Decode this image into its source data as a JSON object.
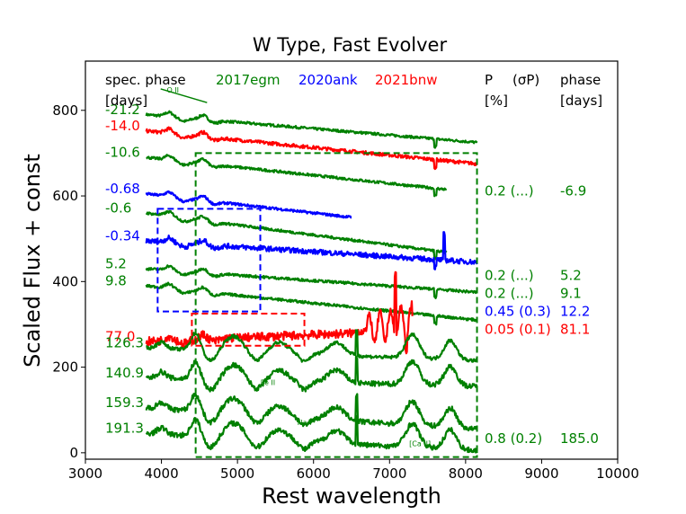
{
  "chart_data": {
    "type": "line",
    "title": "W Type, Fast Evolver",
    "xlabel": "Rest wavelength",
    "ylabel": "Scaled Flux + const",
    "xlim": [
      3000,
      10000
    ],
    "ylim": [
      -15,
      915
    ],
    "xticks": [
      3000,
      4000,
      5000,
      6000,
      7000,
      8000,
      9000,
      10000
    ],
    "yticks": [
      0,
      200,
      400,
      600,
      800
    ],
    "colors": {
      "2017egm": "#008000",
      "2020ank": "#0000ff",
      "2021bnw": "#ff0000"
    },
    "header": {
      "spec_phase": "spec. phase",
      "days_left": "[days]",
      "legend": [
        {
          "name": "2017egm",
          "color": "#008000"
        },
        {
          "name": "2020ank",
          "color": "#0000ff"
        },
        {
          "name": "2021bnw",
          "color": "#ff0000"
        }
      ],
      "p_label": "P",
      "sigma_label": "(σP)",
      "percent": "[%]",
      "phase": "phase",
      "days_right": "[days]"
    },
    "spectra": [
      {
        "sn": "2017egm",
        "phase": "-21.2",
        "start": 3800,
        "end": 8150,
        "level": 790,
        "end_level": 725,
        "noise": 3
      },
      {
        "sn": "2021bnw",
        "phase": "-14.0",
        "start": 3800,
        "end": 8150,
        "level": 752,
        "end_level": 675,
        "noise": 4
      },
      {
        "sn": "2017egm",
        "phase": "-10.6",
        "start": 3800,
        "end": 7750,
        "level": 690,
        "end_level": 615,
        "noise": 3
      },
      {
        "sn": "2020ank",
        "phase": "-0.68",
        "start": 3800,
        "end": 6500,
        "level": 605,
        "end_level": 550,
        "noise": 3
      },
      {
        "sn": "2017egm",
        "phase": "-0.6",
        "start": 3800,
        "end": 7750,
        "level": 560,
        "end_level": 468,
        "noise": 3
      },
      {
        "sn": "2020ank",
        "phase": "-0.34",
        "start": 3800,
        "end": 8150,
        "level": 495,
        "end_level": 445,
        "noise": 6
      },
      {
        "sn": "2017egm",
        "phase": "5.2",
        "start": 3800,
        "end": 8150,
        "level": 430,
        "end_level": 375,
        "noise": 3
      },
      {
        "sn": "2017egm",
        "phase": "9.8",
        "start": 3800,
        "end": 8150,
        "level": 390,
        "end_level": 310,
        "noise": 3
      },
      {
        "sn": "2021bnw",
        "phase": "77.0",
        "start": 3800,
        "end": 7300,
        "level": 260,
        "end_level": 285,
        "noise": 10
      },
      {
        "sn": "2017egm",
        "phase": "126.3",
        "start": 3800,
        "end": 8150,
        "level": 245,
        "end_level": 215,
        "noise": 4
      },
      {
        "sn": "2017egm",
        "phase": "140.9",
        "start": 3800,
        "end": 8150,
        "level": 175,
        "end_level": 155,
        "noise": 6
      },
      {
        "sn": "2017egm",
        "phase": "159.3",
        "start": 3800,
        "end": 8150,
        "level": 105,
        "end_level": 55,
        "noise": 6
      },
      {
        "sn": "2017egm",
        "phase": "191.3",
        "start": 3800,
        "end": 8150,
        "level": 45,
        "end_level": 5,
        "noise": 6
      }
    ],
    "polarization": [
      {
        "sn": "2017egm",
        "p": "0.2 (...)",
        "phase": "-6.9",
        "y": 612
      },
      {
        "sn": "2017egm",
        "p": "0.2 (...)",
        "phase": "5.2",
        "y": 414
      },
      {
        "sn": "2017egm",
        "p": "0.2 (...)",
        "phase": "9.1",
        "y": 372
      },
      {
        "sn": "2020ank",
        "p": "0.45 (0.3)",
        "phase": "12.2",
        "y": 330
      },
      {
        "sn": "2021bnw",
        "p": "0.05 (0.1)",
        "phase": "81.1",
        "y": 288
      },
      {
        "sn": "2017egm",
        "p": "0.8 (0.2)",
        "phase": "185.0",
        "y": 33
      }
    ],
    "boxes": [
      {
        "sn": "2017egm",
        "x": [
          4450,
          8150
        ],
        "y": [
          -10,
          700
        ]
      },
      {
        "sn": "2020ank",
        "x": [
          3950,
          5300
        ],
        "y": [
          330,
          570
        ]
      },
      {
        "sn": "2021bnw",
        "x": [
          4400,
          5880
        ],
        "y": [
          250,
          325
        ]
      }
    ],
    "annotations": [
      {
        "text": "O II",
        "x": 4150,
        "y": 842,
        "sn": "2017egm"
      },
      {
        "text": "Fe II",
        "x": 5400,
        "y": 158,
        "sn": "2017egm"
      },
      {
        "text": "Na I",
        "x": 5880,
        "y": 65,
        "sn": "2017egm"
      },
      {
        "text": "[Ca II]",
        "x": 7400,
        "y": 15,
        "sn": "2017egm"
      }
    ],
    "oii_line": {
      "x": [
        3990,
        4600
      ],
      "y": [
        850,
        818
      ]
    }
  }
}
